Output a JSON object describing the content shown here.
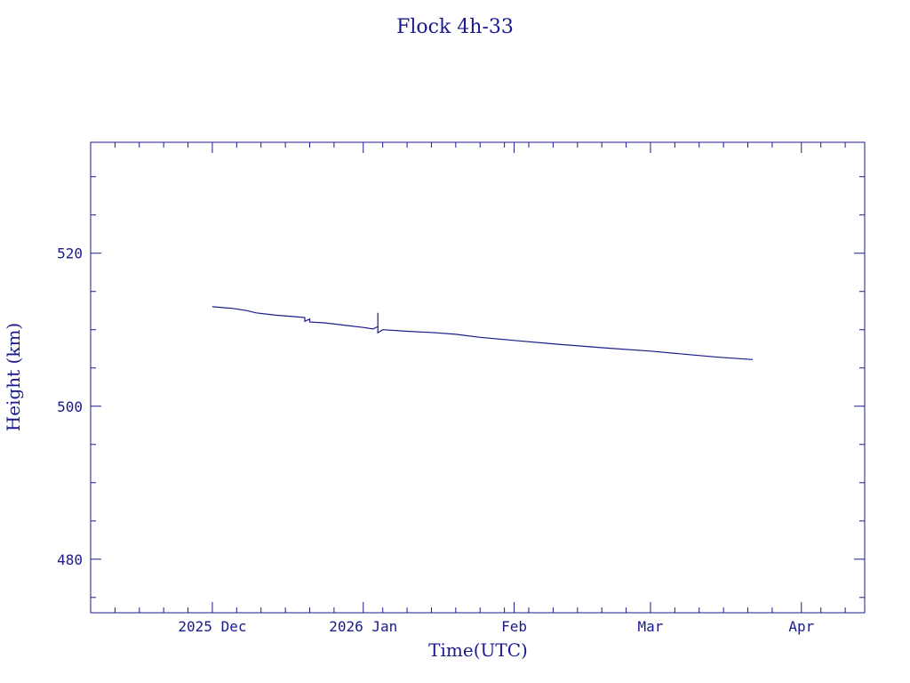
{
  "colors": {
    "ink": "#1a1a8c",
    "background": "#ffffff"
  },
  "chart_data": {
    "type": "line",
    "title": "Flock 4h-33",
    "xlabel": "Time(UTC)",
    "ylabel": "Height (km)",
    "x_axis_kind": "date",
    "xlim": [
      "2025-11-06",
      "2026-04-14"
    ],
    "ylim": [
      473,
      534.5
    ],
    "x_ticks": [
      {
        "date": "2025-12-01",
        "label": "2025 Dec"
      },
      {
        "date": "2026-01-01",
        "label": "2026 Jan"
      },
      {
        "date": "2026-02-01",
        "label": "Feb"
      },
      {
        "date": "2026-03-01",
        "label": "Mar"
      },
      {
        "date": "2026-04-01",
        "label": "Apr"
      }
    ],
    "y_ticks": [
      480,
      500,
      520
    ],
    "y_minor_step": 5,
    "x_minor_step_days": 5,
    "grid": false,
    "series": [
      {
        "color": "#1a1a8c",
        "points": [
          [
            "2025-12-01",
            513.0
          ],
          [
            "2025-12-05",
            512.8
          ],
          [
            "2025-12-08",
            512.5
          ],
          [
            "2025-12-10",
            512.2
          ],
          [
            "2025-12-14",
            511.9
          ],
          [
            "2025-12-18",
            511.7
          ],
          [
            "2025-12-20",
            511.6
          ],
          [
            "2025-12-20",
            511.1
          ],
          [
            "2025-12-21",
            511.4
          ],
          [
            "2025-12-21",
            511.0
          ],
          [
            "2025-12-24",
            510.9
          ],
          [
            "2025-12-28",
            510.6
          ],
          [
            "2026-01-01",
            510.3
          ],
          [
            "2026-01-03",
            510.1
          ],
          [
            "2026-01-04",
            510.4
          ],
          [
            "2026-01-04",
            512.2
          ],
          [
            "2026-01-04",
            509.6
          ],
          [
            "2026-01-05",
            510.0
          ],
          [
            "2026-01-10",
            509.8
          ],
          [
            "2026-01-16",
            509.6
          ],
          [
            "2026-01-20",
            509.4
          ],
          [
            "2026-01-25",
            509.0
          ],
          [
            "2026-02-01",
            508.6
          ],
          [
            "2026-02-10",
            508.1
          ],
          [
            "2026-02-20",
            507.6
          ],
          [
            "2026-03-01",
            507.2
          ],
          [
            "2026-03-08",
            506.8
          ],
          [
            "2026-03-15",
            506.4
          ],
          [
            "2026-03-22",
            506.1
          ]
        ]
      }
    ]
  }
}
